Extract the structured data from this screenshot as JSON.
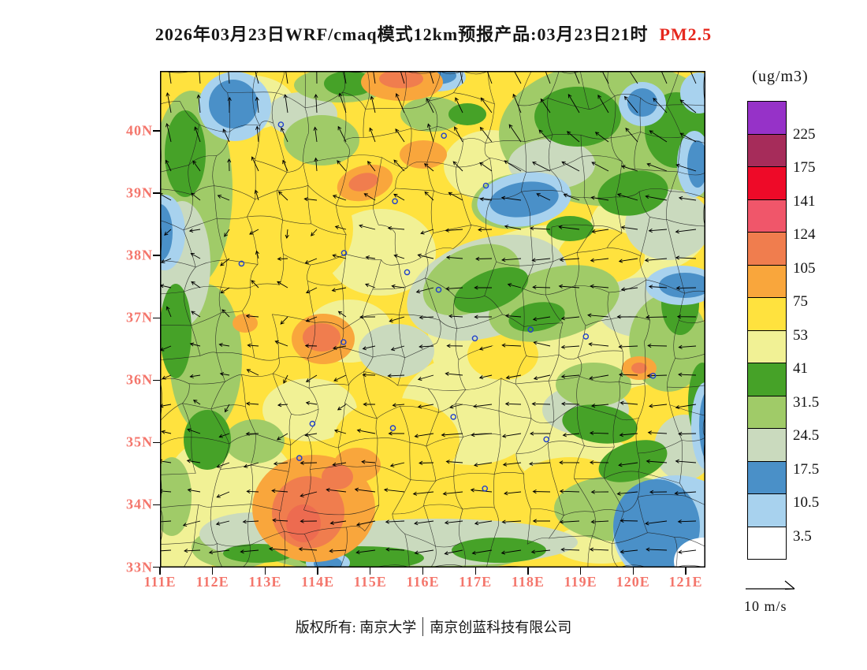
{
  "title": {
    "black": "2026年03月23日WRF/cmaq模式12km预报产品:03月23日21时",
    "species": "PM2.5",
    "species_color": "#e6281e"
  },
  "axes": {
    "lat": [
      "40N",
      "39N",
      "38N",
      "37N",
      "36N",
      "35N",
      "34N",
      "33N"
    ],
    "lon": [
      "111E",
      "112E",
      "113E",
      "114E",
      "115E",
      "116E",
      "117E",
      "118E",
      "119E",
      "120E",
      "121E"
    ],
    "label_color": "#f4766c"
  },
  "legend": {
    "title": "(ug/m3)",
    "labels": [
      "225",
      "175",
      "141",
      "124",
      "105",
      "75",
      "53",
      "41",
      "31.5",
      "24.5",
      "17.5",
      "10.5",
      "3.5"
    ],
    "colors_top_to_bottom": [
      "#9632c8",
      "#a62c5a",
      "#ee0a28",
      "#f0566a",
      "#f07d4e",
      "#f9a63c",
      "#ffe23e",
      "#f1f195",
      "#46a228",
      "#a0cb68",
      "#cadabe",
      "#4a90c8",
      "#a8d2ee",
      "#ffffff"
    ]
  },
  "wind_reference": {
    "label": "10 m/s"
  },
  "copyright": {
    "left": "版权所有: 南京大学",
    "right": "南京创蓝科技有限公司"
  },
  "stations": [
    [
      113.3,
      40.1
    ],
    [
      116.4,
      39.92
    ],
    [
      117.2,
      39.12
    ],
    [
      115.47,
      38.87
    ],
    [
      114.5,
      38.04
    ],
    [
      112.55,
      37.87
    ],
    [
      115.7,
      37.73
    ],
    [
      116.3,
      37.45
    ],
    [
      116.99,
      36.67
    ],
    [
      118.05,
      36.81
    ],
    [
      119.1,
      36.7
    ],
    [
      120.38,
      36.07
    ],
    [
      114.49,
      36.61
    ],
    [
      113.9,
      35.3
    ],
    [
      113.65,
      34.75
    ],
    [
      115.43,
      35.23
    ],
    [
      116.58,
      35.41
    ],
    [
      117.18,
      34.26
    ],
    [
      118.35,
      35.05
    ]
  ]
}
